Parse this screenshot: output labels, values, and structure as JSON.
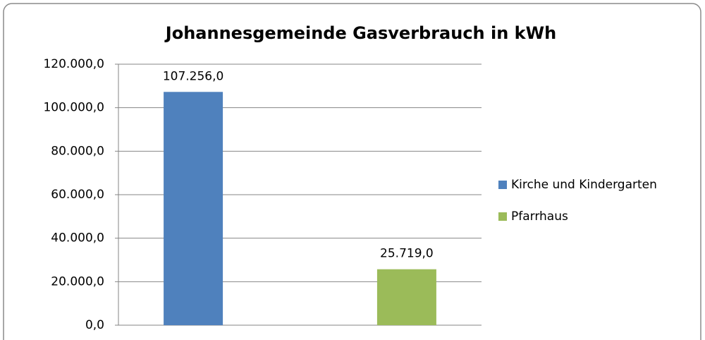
{
  "chart_data": {
    "type": "bar",
    "title": "Johannesgemeinde Gasverbrauch in kWh",
    "categories": [
      null
    ],
    "series": [
      {
        "name": "Kirche und Kindergarten",
        "color": "#4f81bd",
        "values": [
          107256
        ],
        "value_labels": [
          "107.256,0"
        ]
      },
      {
        "name": "Pfarrhaus",
        "color": "#9bbb59",
        "values": [
          25719
        ],
        "value_labels": [
          "25.719,0"
        ]
      }
    ],
    "ylim": [
      0,
      120000
    ],
    "yticks": [
      {
        "value": 0,
        "label": "0,0"
      },
      {
        "value": 20000,
        "label": "20.000,0"
      },
      {
        "value": 40000,
        "label": "40.000,0"
      },
      {
        "value": 60000,
        "label": "60.000,0"
      },
      {
        "value": 80000,
        "label": "80.000,0"
      },
      {
        "value": 100000,
        "label": "100.000,0"
      },
      {
        "value": 120000,
        "label": "120.000,0"
      }
    ],
    "grid": true,
    "legend": "right"
  }
}
